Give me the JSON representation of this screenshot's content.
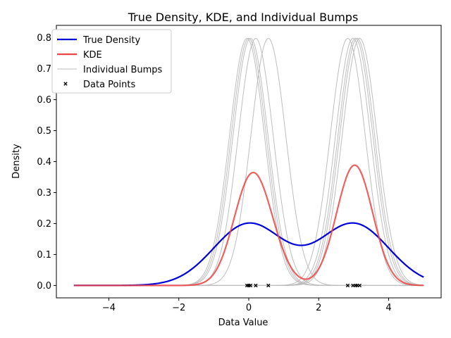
{
  "chart_data": {
    "type": "line",
    "title": "True Density, KDE, and Individual Bumps",
    "xlabel": "Data Value",
    "ylabel": "Density",
    "xlim": [
      -5.5,
      5.5
    ],
    "ylim": [
      -0.04,
      0.84
    ],
    "xticks": [
      -4,
      -2,
      0,
      2,
      4
    ],
    "xtick_labels": [
      "−4",
      "−2",
      "0",
      "2",
      "4"
    ],
    "yticks": [
      0.0,
      0.1,
      0.2,
      0.3,
      0.4,
      0.5,
      0.6,
      0.7,
      0.8
    ],
    "ytick_labels": [
      "0.0",
      "0.1",
      "0.2",
      "0.3",
      "0.4",
      "0.5",
      "0.6",
      "0.7",
      "0.8"
    ],
    "grid": false,
    "legend_position": "top-left",
    "x_range": [
      -5,
      5
    ],
    "data_points": [
      -0.05,
      0.0,
      0.05,
      0.2,
      0.56,
      2.83,
      2.98,
      3.05,
      3.1,
      3.17
    ],
    "bump_bandwidth": 0.5,
    "true_density": {
      "components": [
        {
          "mean": 0,
          "sd": 1,
          "weight": 0.5
        },
        {
          "mean": 3,
          "sd": 1,
          "weight": 0.5
        }
      ]
    },
    "series": [
      {
        "name": "True Density",
        "color": "#0000dd",
        "style": "line"
      },
      {
        "name": "KDE",
        "color": "#ef4444",
        "style": "line"
      },
      {
        "name": "Individual Bumps",
        "color": "#bdbdbd",
        "style": "line"
      },
      {
        "name": "Data Points",
        "color": "#000000",
        "style": "marker-x"
      }
    ]
  }
}
